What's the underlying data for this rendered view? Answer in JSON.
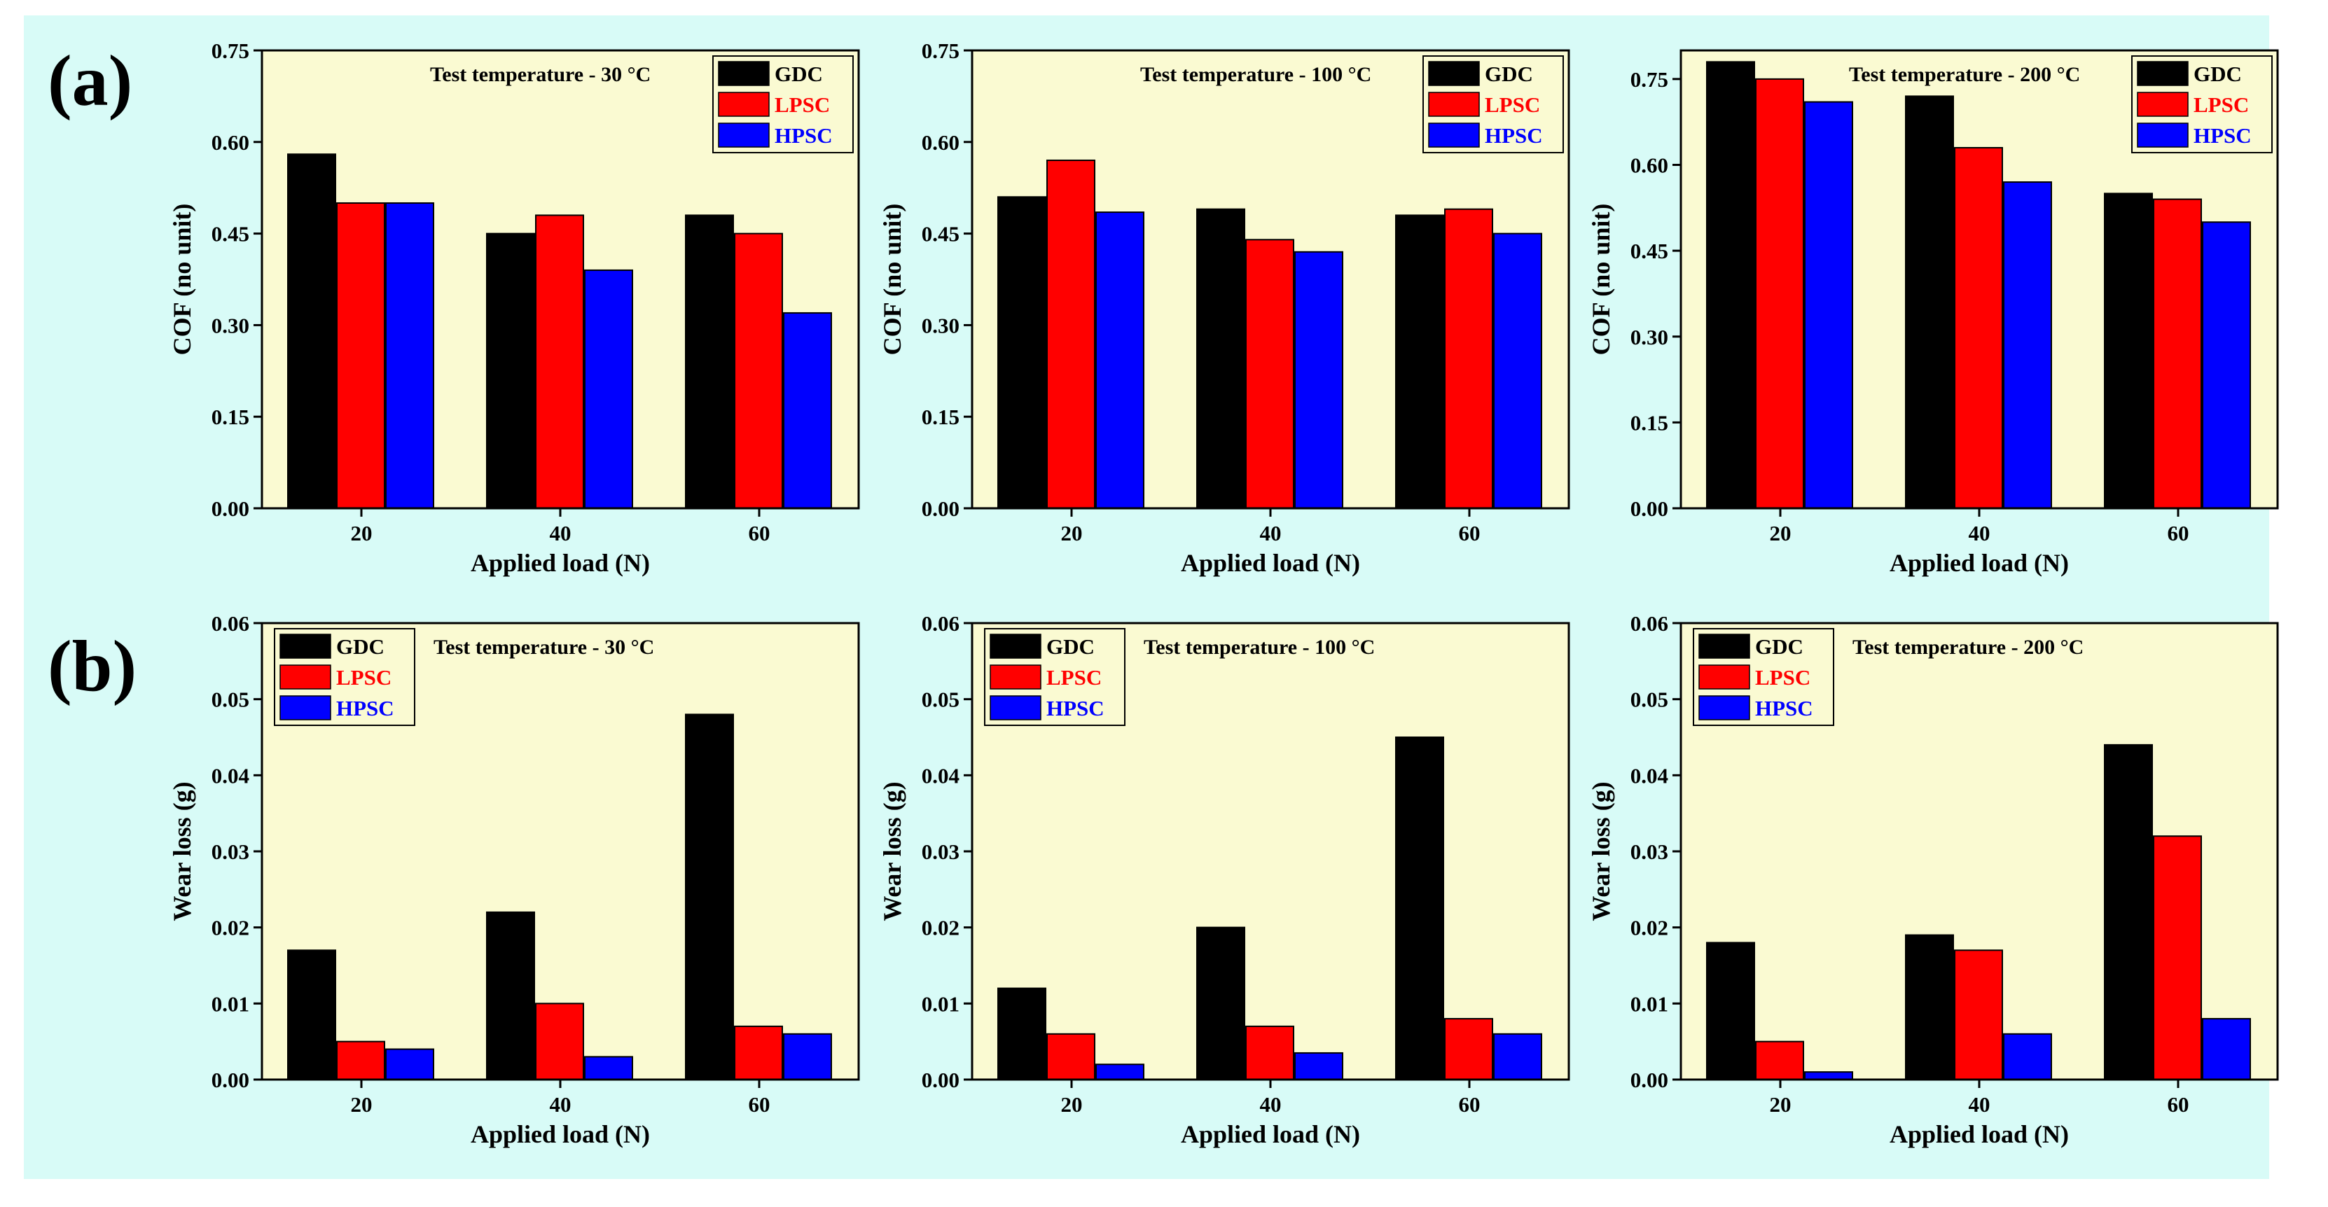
{
  "panel_labels": {
    "a": "(a)",
    "b": "(b)"
  },
  "colors": {
    "GDC": "#000000",
    "LPSC": "#ff0000",
    "HPSC": "#0000ff",
    "plot_bg": "#fafad2",
    "figure_bg": "#d8fbf7"
  },
  "chart_data": [
    {
      "type": "bar",
      "row": "a",
      "title": "Test temperature - 30 °C",
      "xlabel": "Applied load (N)",
      "ylabel": "COF (no unit)",
      "categories": [
        "20",
        "40",
        "60"
      ],
      "ylim": [
        0,
        0.75
      ],
      "yticks": [
        "0.00",
        "0.15",
        "0.30",
        "0.45",
        "0.60",
        "0.75"
      ],
      "ytick_values": [
        0,
        0.15,
        0.3,
        0.45,
        0.6,
        0.75
      ],
      "legend": "top-right",
      "series": [
        {
          "name": "GDC",
          "values": [
            0.58,
            0.45,
            0.48
          ]
        },
        {
          "name": "LPSC",
          "values": [
            0.5,
            0.48,
            0.45
          ]
        },
        {
          "name": "HPSC",
          "values": [
            0.5,
            0.39,
            0.32
          ]
        }
      ]
    },
    {
      "type": "bar",
      "row": "a",
      "title": "Test temperature - 100 °C",
      "xlabel": "Applied load (N)",
      "ylabel": "COF (no unit)",
      "categories": [
        "20",
        "40",
        "60"
      ],
      "ylim": [
        0,
        0.75
      ],
      "yticks": [
        "0.00",
        "0.15",
        "0.30",
        "0.45",
        "0.60",
        "0.75"
      ],
      "ytick_values": [
        0,
        0.15,
        0.3,
        0.45,
        0.6,
        0.75
      ],
      "legend": "top-right",
      "series": [
        {
          "name": "GDC",
          "values": [
            0.51,
            0.49,
            0.48
          ]
        },
        {
          "name": "LPSC",
          "values": [
            0.57,
            0.44,
            0.49
          ]
        },
        {
          "name": "HPSC",
          "values": [
            0.485,
            0.42,
            0.45
          ]
        }
      ]
    },
    {
      "type": "bar",
      "row": "a",
      "title": "Test temperature - 200 °C",
      "xlabel": "Applied load (N)",
      "ylabel": "COF (no unit)",
      "categories": [
        "20",
        "40",
        "60"
      ],
      "ylim": [
        0,
        0.8
      ],
      "yticks": [
        "0.00",
        "0.15",
        "0.30",
        "0.45",
        "0.60",
        "0.75"
      ],
      "ytick_values": [
        0,
        0.15,
        0.3,
        0.45,
        0.6,
        0.75
      ],
      "legend": "top-right",
      "series": [
        {
          "name": "GDC",
          "values": [
            0.78,
            0.72,
            0.55
          ]
        },
        {
          "name": "LPSC",
          "values": [
            0.75,
            0.63,
            0.54
          ]
        },
        {
          "name": "HPSC",
          "values": [
            0.71,
            0.57,
            0.5
          ]
        }
      ]
    },
    {
      "type": "bar",
      "row": "b",
      "title": "Test temperature - 30 °C",
      "xlabel": "Applied load (N)",
      "ylabel": "Wear loss (g)",
      "categories": [
        "20",
        "40",
        "60"
      ],
      "ylim": [
        0,
        0.06
      ],
      "yticks": [
        "0.00",
        "0.01",
        "0.02",
        "0.03",
        "0.04",
        "0.05",
        "0.06"
      ],
      "ytick_values": [
        0,
        0.01,
        0.02,
        0.03,
        0.04,
        0.05,
        0.06
      ],
      "legend": "top-left",
      "series": [
        {
          "name": "GDC",
          "values": [
            0.017,
            0.022,
            0.048
          ]
        },
        {
          "name": "LPSC",
          "values": [
            0.005,
            0.01,
            0.007
          ]
        },
        {
          "name": "HPSC",
          "values": [
            0.004,
            0.003,
            0.006
          ]
        }
      ]
    },
    {
      "type": "bar",
      "row": "b",
      "title": "Test temperature - 100 °C",
      "xlabel": "Applied load (N)",
      "ylabel": "Wear loss (g)",
      "categories": [
        "20",
        "40",
        "60"
      ],
      "ylim": [
        0,
        0.06
      ],
      "yticks": [
        "0.00",
        "0.01",
        "0.02",
        "0.03",
        "0.04",
        "0.05",
        "0.06"
      ],
      "ytick_values": [
        0,
        0.01,
        0.02,
        0.03,
        0.04,
        0.05,
        0.06
      ],
      "legend": "top-left",
      "series": [
        {
          "name": "GDC",
          "values": [
            0.012,
            0.02,
            0.045
          ]
        },
        {
          "name": "LPSC",
          "values": [
            0.006,
            0.007,
            0.008
          ]
        },
        {
          "name": "HPSC",
          "values": [
            0.002,
            0.0035,
            0.006
          ]
        }
      ]
    },
    {
      "type": "bar",
      "row": "b",
      "title": "Test temperature - 200 °C",
      "xlabel": "Applied load (N)",
      "ylabel": "Wear loss (g)",
      "categories": [
        "20",
        "40",
        "60"
      ],
      "ylim": [
        0,
        0.06
      ],
      "yticks": [
        "0.00",
        "0.01",
        "0.02",
        "0.03",
        "0.04",
        "0.05",
        "0.06"
      ],
      "ytick_values": [
        0,
        0.01,
        0.02,
        0.03,
        0.04,
        0.05,
        0.06
      ],
      "legend": "top-left",
      "series": [
        {
          "name": "GDC",
          "values": [
            0.018,
            0.019,
            0.044
          ]
        },
        {
          "name": "LPSC",
          "values": [
            0.005,
            0.017,
            0.032
          ]
        },
        {
          "name": "HPSC",
          "values": [
            0.001,
            0.006,
            0.008
          ]
        }
      ]
    }
  ]
}
